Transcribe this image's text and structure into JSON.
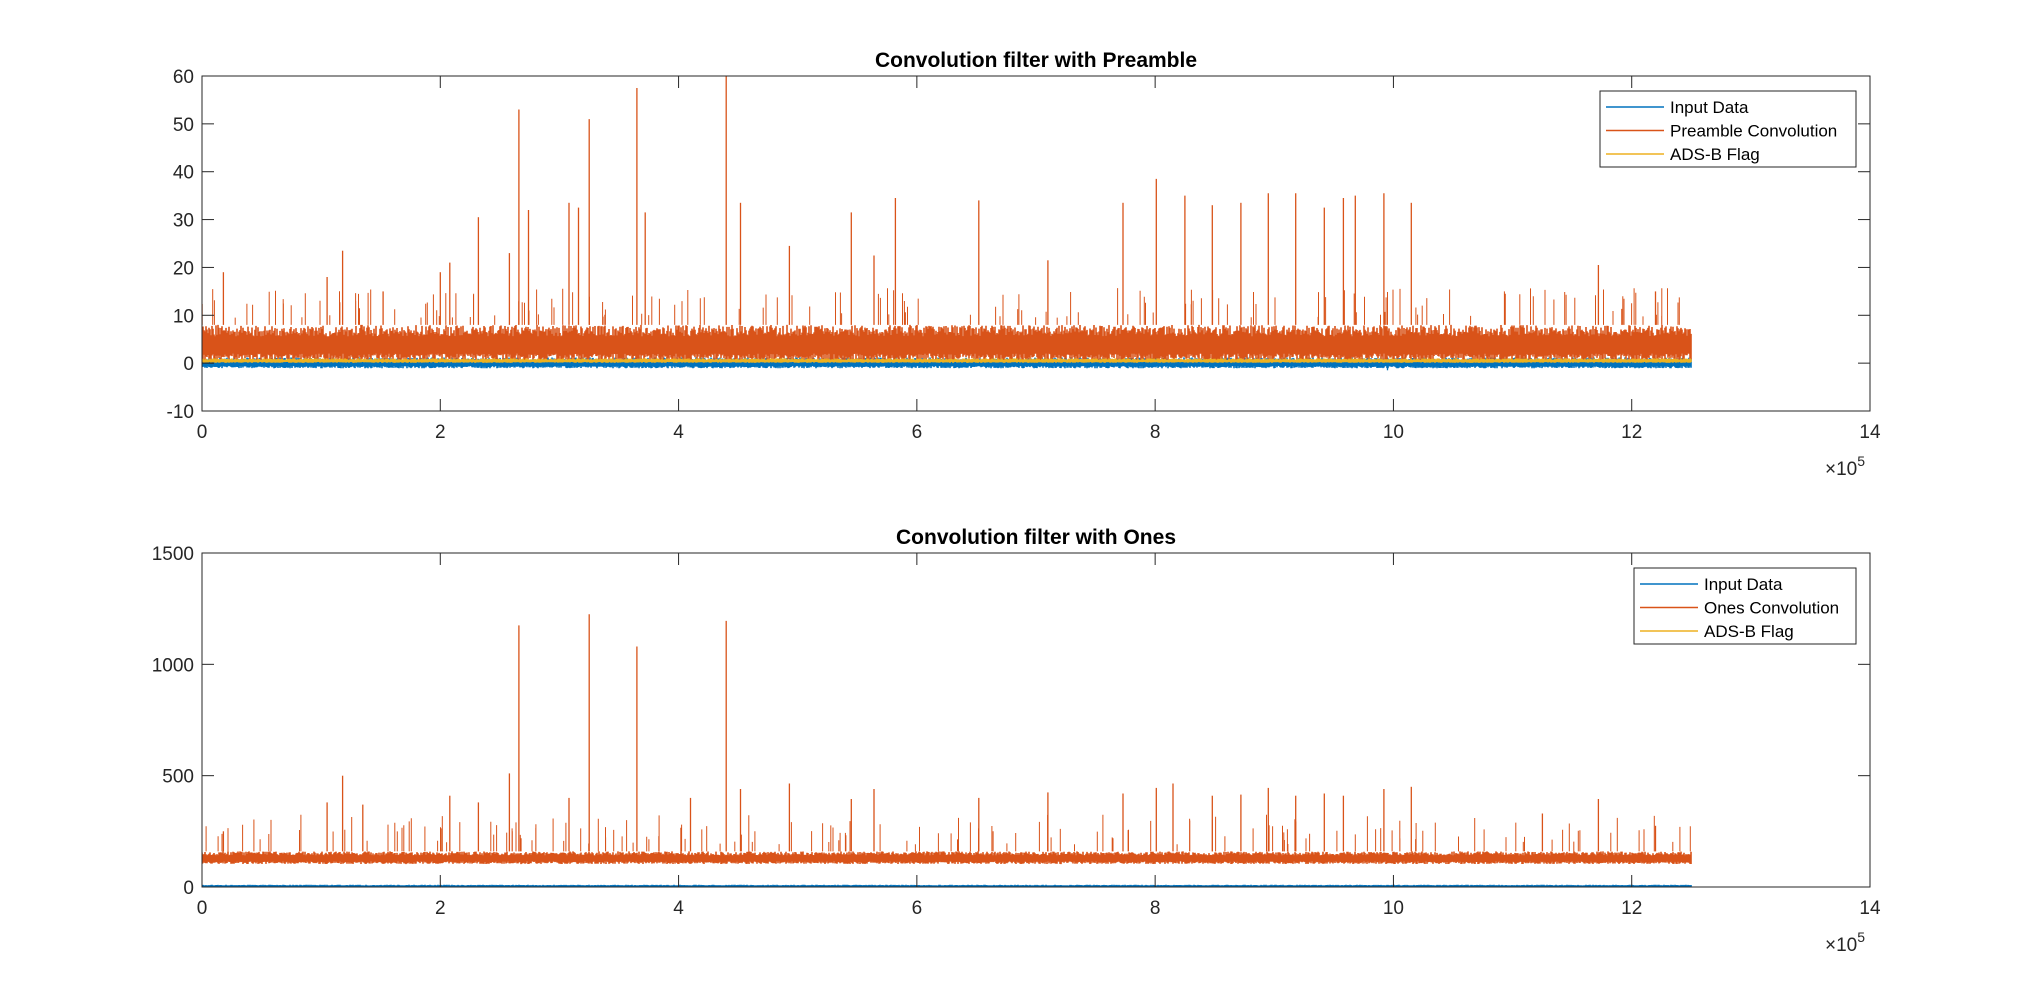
{
  "chart_data": [
    {
      "type": "line",
      "title": "Convolution filter with Preamble",
      "xlabel": "",
      "ylabel": "",
      "xlim": [
        0,
        1400000
      ],
      "ylim": [
        -10,
        60
      ],
      "xticks": [
        0,
        200000,
        400000,
        600000,
        800000,
        1000000,
        1200000,
        1400000
      ],
      "xtick_labels": [
        "0",
        "2",
        "4",
        "6",
        "8",
        "10",
        "12",
        "14"
      ],
      "x_exponent": "×10⁵",
      "x_exponent_base": "×10",
      "x_exponent_power": "5",
      "yticks": [
        -10,
        0,
        10,
        20,
        30,
        40,
        50,
        60
      ],
      "ytick_labels": [
        "-10",
        "0",
        "10",
        "20",
        "30",
        "40",
        "50",
        "60"
      ],
      "grid": false,
      "legend_position": "top-right",
      "data_x_range": [
        0,
        1250000
      ],
      "series": [
        {
          "name": "Input Data",
          "color": "#0072BD",
          "baseline_band": [
            -1.2,
            1.2
          ],
          "peaks": [
            {
              "x": 335000,
              "y": 1.5
            },
            {
              "x": 440000,
              "y": 1.8
            },
            {
              "x": 598000,
              "y": 1.2
            },
            {
              "x": 802000,
              "y": 1.6
            },
            {
              "x": 995000,
              "y": -1.5
            },
            {
              "x": 1010000,
              "y": 1.4
            }
          ]
        },
        {
          "name": "Preamble Convolution",
          "color": "#D95319",
          "baseline_band": [
            0,
            8
          ],
          "peaks": [
            {
              "x": 18000,
              "y": 19
            },
            {
              "x": 105000,
              "y": 18
            },
            {
              "x": 118000,
              "y": 23.5
            },
            {
              "x": 152000,
              "y": 15
            },
            {
              "x": 200000,
              "y": 19
            },
            {
              "x": 208000,
              "y": 21
            },
            {
              "x": 232000,
              "y": 30.5
            },
            {
              "x": 258000,
              "y": 23
            },
            {
              "x": 266000,
              "y": 53
            },
            {
              "x": 274000,
              "y": 32
            },
            {
              "x": 308000,
              "y": 33.5
            },
            {
              "x": 316000,
              "y": 32.5
            },
            {
              "x": 325000,
              "y": 51
            },
            {
              "x": 365000,
              "y": 57.5
            },
            {
              "x": 372000,
              "y": 31.5
            },
            {
              "x": 440000,
              "y": 60
            },
            {
              "x": 452000,
              "y": 33.5
            },
            {
              "x": 493000,
              "y": 24.5
            },
            {
              "x": 545000,
              "y": 31.5
            },
            {
              "x": 564000,
              "y": 22.5
            },
            {
              "x": 582000,
              "y": 34.5
            },
            {
              "x": 652000,
              "y": 34
            },
            {
              "x": 710000,
              "y": 21.5
            },
            {
              "x": 773000,
              "y": 33.5
            },
            {
              "x": 801000,
              "y": 38.5
            },
            {
              "x": 825000,
              "y": 35
            },
            {
              "x": 848000,
              "y": 33
            },
            {
              "x": 872000,
              "y": 33.5
            },
            {
              "x": 895000,
              "y": 35.5
            },
            {
              "x": 918000,
              "y": 35.5
            },
            {
              "x": 942000,
              "y": 32.5
            },
            {
              "x": 958000,
              "y": 34.5
            },
            {
              "x": 968000,
              "y": 35
            },
            {
              "x": 992000,
              "y": 35.5
            },
            {
              "x": 1015000,
              "y": 33.5
            },
            {
              "x": 1172000,
              "y": 20.5
            },
            {
              "x": 1220000,
              "y": 15
            }
          ]
        },
        {
          "name": "ADS-B Flag",
          "color": "#EDB120",
          "baseline_band": [
            0,
            1
          ]
        }
      ]
    },
    {
      "type": "line",
      "title": "Convolution filter with Ones",
      "xlabel": "",
      "ylabel": "",
      "xlim": [
        0,
        1400000
      ],
      "ylim": [
        0,
        1500
      ],
      "xticks": [
        0,
        200000,
        400000,
        600000,
        800000,
        1000000,
        1200000,
        1400000
      ],
      "xtick_labels": [
        "0",
        "2",
        "4",
        "6",
        "8",
        "10",
        "12",
        "14"
      ],
      "x_exponent": "×10⁵",
      "x_exponent_base": "×10",
      "x_exponent_power": "5",
      "yticks": [
        0,
        500,
        1000,
        1500
      ],
      "ytick_labels": [
        "0",
        "500",
        "1000",
        "1500"
      ],
      "grid": false,
      "legend_position": "top-right",
      "data_x_range": [
        0,
        1250000
      ],
      "series": [
        {
          "name": "Input Data",
          "color": "#0072BD",
          "baseline_band": [
            0,
            10
          ]
        },
        {
          "name": "Ones Convolution",
          "color": "#D95319",
          "baseline_band": [
            100,
            160
          ],
          "peaks": [
            {
              "x": 18000,
              "y": 250
            },
            {
              "x": 105000,
              "y": 380
            },
            {
              "x": 118000,
              "y": 500
            },
            {
              "x": 135000,
              "y": 370
            },
            {
              "x": 208000,
              "y": 410
            },
            {
              "x": 232000,
              "y": 380
            },
            {
              "x": 258000,
              "y": 510
            },
            {
              "x": 266000,
              "y": 1175
            },
            {
              "x": 308000,
              "y": 400
            },
            {
              "x": 325000,
              "y": 1225
            },
            {
              "x": 365000,
              "y": 1080
            },
            {
              "x": 410000,
              "y": 400
            },
            {
              "x": 440000,
              "y": 1195
            },
            {
              "x": 452000,
              "y": 440
            },
            {
              "x": 493000,
              "y": 465
            },
            {
              "x": 545000,
              "y": 395
            },
            {
              "x": 564000,
              "y": 440
            },
            {
              "x": 652000,
              "y": 400
            },
            {
              "x": 710000,
              "y": 425
            },
            {
              "x": 773000,
              "y": 420
            },
            {
              "x": 801000,
              "y": 445
            },
            {
              "x": 815000,
              "y": 465
            },
            {
              "x": 848000,
              "y": 410
            },
            {
              "x": 872000,
              "y": 415
            },
            {
              "x": 895000,
              "y": 445
            },
            {
              "x": 918000,
              "y": 410
            },
            {
              "x": 942000,
              "y": 420
            },
            {
              "x": 958000,
              "y": 410
            },
            {
              "x": 992000,
              "y": 440
            },
            {
              "x": 1015000,
              "y": 450
            },
            {
              "x": 1125000,
              "y": 330
            },
            {
              "x": 1172000,
              "y": 395
            },
            {
              "x": 1220000,
              "y": 275
            }
          ]
        },
        {
          "name": "ADS-B Flag",
          "color": "#EDB120",
          "baseline_band": [
            0,
            1
          ]
        }
      ]
    }
  ]
}
